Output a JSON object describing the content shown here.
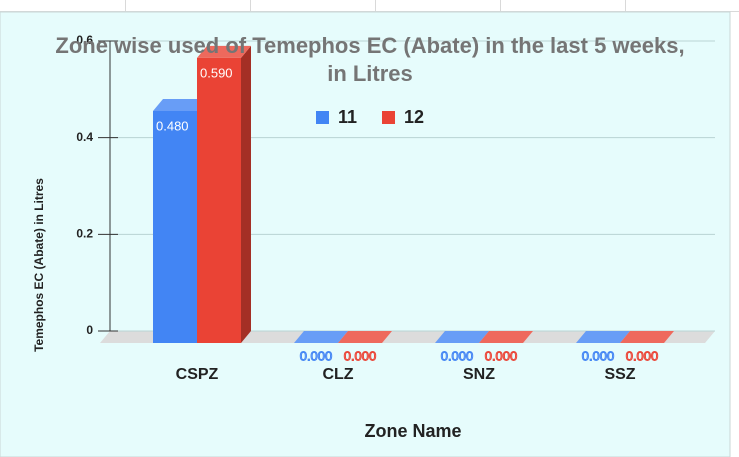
{
  "chart_data": {
    "type": "bar3d",
    "title": "Zone wise used of Temephos EC (Abate) in the last 5 weeks, in Litres",
    "x_label": "Zone Name",
    "y_label": "Temephos EC (Abate) in Litres",
    "categories": [
      "CSPZ",
      "CLZ",
      "SNZ",
      "SSZ"
    ],
    "series": [
      {
        "name": "11",
        "color": "#4285f4",
        "values": [
          0.48,
          0,
          0,
          0
        ],
        "value_labels": [
          "0.480",
          "0.000",
          "0.000",
          "0.000"
        ]
      },
      {
        "name": "12",
        "color": "#ea4335",
        "values": [
          0.59,
          0,
          0,
          0
        ],
        "value_labels": [
          "0.590",
          "0.000",
          "0.000",
          "0.000"
        ]
      }
    ],
    "ylim": [
      0,
      0.6
    ],
    "yticks": [
      0,
      0.2,
      0.4,
      0.6
    ],
    "grid": true,
    "legend": "top"
  }
}
